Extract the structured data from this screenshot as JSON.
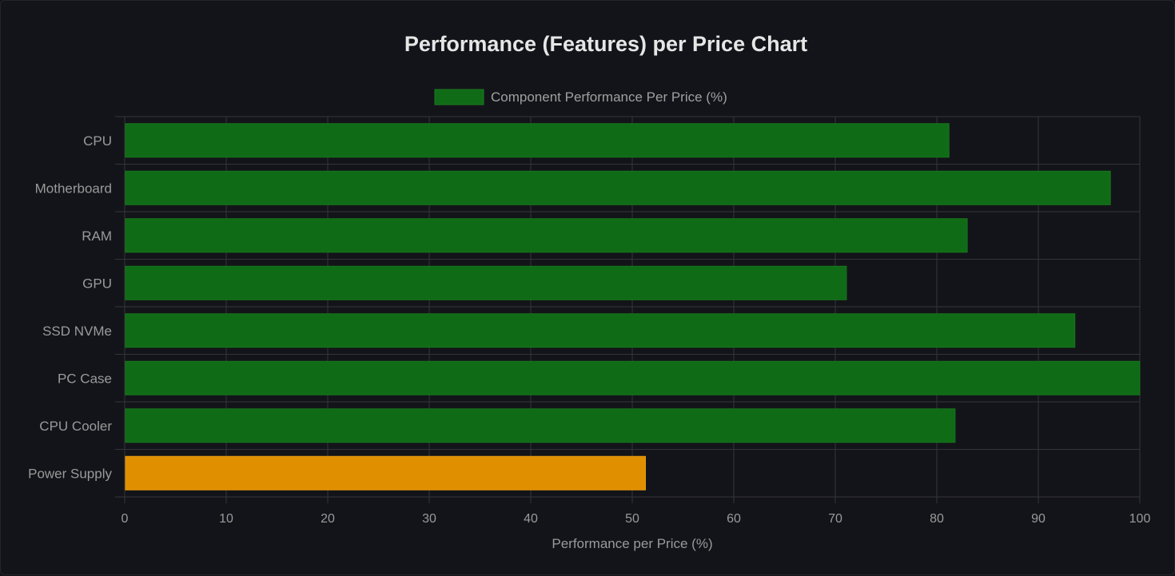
{
  "chart_data": {
    "type": "bar",
    "orientation": "horizontal",
    "title": "Performance (Features) per Price Chart",
    "legend": {
      "label": "Component Performance Per Price (%)",
      "placement": "top-center",
      "color": "#106b16"
    },
    "categories": [
      "CPU",
      "Motherboard",
      "RAM",
      "GPU",
      "SSD NVMe",
      "PC Case",
      "CPU Cooler",
      "Power Supply"
    ],
    "values": [
      81.2,
      97.1,
      83,
      71.1,
      93.6,
      100,
      81.8,
      51.3
    ],
    "bar_colors": [
      "#106b16",
      "#106b16",
      "#106b16",
      "#106b16",
      "#106b16",
      "#106b16",
      "#106b16",
      "#df8f00"
    ],
    "xlabel": "Performance per Price (%)",
    "ylabel": "",
    "xlim": [
      0,
      100
    ],
    "xticks": [
      "0",
      "10",
      "20",
      "30",
      "40",
      "50",
      "60",
      "70",
      "80",
      "90",
      "100"
    ],
    "grid": true
  }
}
